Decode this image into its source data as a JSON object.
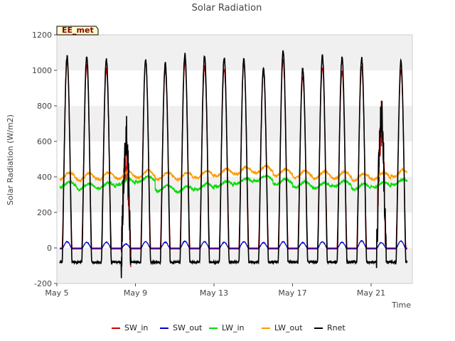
{
  "chart_data": {
    "type": "line",
    "title": "Solar Radiation",
    "xlabel": "Time",
    "ylabel": "Solar Radiation (W/m2)",
    "site_badge": "EE_met",
    "x_ticks": [
      "May 5",
      "May 9",
      "May 13",
      "May 17",
      "May 21"
    ],
    "x_tick_days": [
      5,
      9,
      13,
      17,
      21
    ],
    "xlim": [
      5,
      23.1
    ],
    "ylim": [
      -200,
      1200
    ],
    "y_ticks": [
      -200,
      0,
      200,
      400,
      600,
      800,
      1000,
      1200
    ],
    "y_tick_labels": [
      "-200",
      "0",
      "200",
      "400",
      "600",
      "800",
      "1000",
      "1200"
    ],
    "grid": "horizontal bands",
    "legend_position": "bottom-center",
    "days": [
      5.25,
      6.25,
      7.25,
      8.25,
      9.25,
      10.25,
      11.25,
      12.25,
      13.25,
      14.25,
      15.25,
      16.25,
      17.25,
      18.25,
      19.25,
      20.25,
      21.25,
      22.25
    ],
    "series": [
      {
        "name": "SW_in",
        "color": "#cc0000",
        "kind": "SW_in",
        "peaks": [
          1050,
          1030,
          1010,
          520,
          1050,
          1000,
          1050,
          1020,
          1010,
          1040,
          990,
          1060,
          960,
          1020,
          1000,
          1020,
          700,
          1000
        ],
        "night": 0
      },
      {
        "name": "SW_out",
        "color": "#0000cc",
        "kind": "SW_out",
        "peaks": [
          35,
          32,
          32,
          22,
          35,
          32,
          38,
          35,
          32,
          35,
          30,
          35,
          30,
          35,
          32,
          40,
          30,
          38
        ],
        "night": -5
      },
      {
        "name": "LW_in",
        "color": "#00dd00",
        "kind": "LW",
        "base": [
          340,
          330,
          335,
          355,
          370,
          320,
          315,
          330,
          345,
          360,
          375,
          355,
          340,
          335,
          345,
          330,
          340,
          355
        ],
        "amp": 40
      },
      {
        "name": "LW_out",
        "color": "#ff9900",
        "kind": "LW",
        "base": [
          385,
          380,
          385,
          390,
          395,
          385,
          385,
          395,
          405,
          415,
          420,
          405,
          395,
          390,
          390,
          380,
          385,
          400
        ],
        "amp": 50
      },
      {
        "name": "Rnet",
        "color": "#000000",
        "kind": "Rnet",
        "peaks": [
          1080,
          1080,
          1060,
          650,
          1060,
          1040,
          1090,
          1080,
          1070,
          1060,
          1020,
          1110,
          1010,
          1080,
          1070,
          1070,
          780,
          1050
        ],
        "night": -80
      }
    ]
  }
}
